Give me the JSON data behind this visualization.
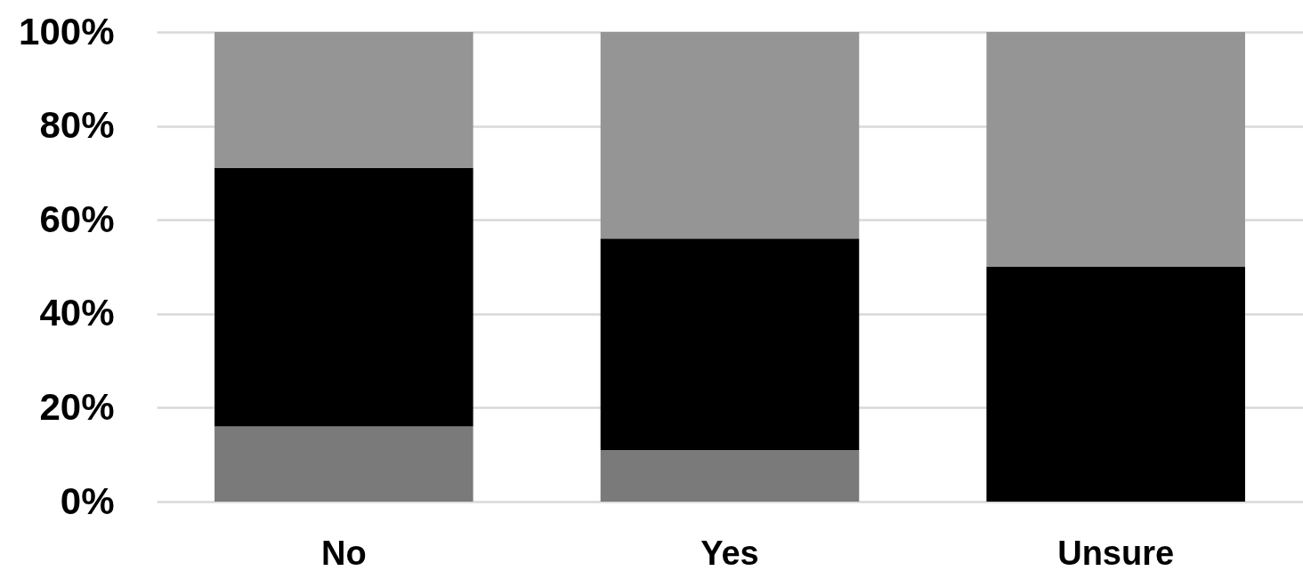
{
  "chart_data": {
    "type": "bar",
    "stacked": true,
    "categories": [
      "No",
      "Yes",
      "Unsure"
    ],
    "series": [
      {
        "color": "#7a7a7a",
        "values": [
          16,
          11,
          0
        ]
      },
      {
        "color": "#000000",
        "values": [
          55,
          45,
          50
        ]
      },
      {
        "color": "#959595",
        "values": [
          29,
          44,
          50
        ]
      }
    ],
    "ylim": [
      0,
      100
    ],
    "yticks": [
      {
        "value": 0,
        "label": "0%"
      },
      {
        "value": 20,
        "label": "20%"
      },
      {
        "value": 40,
        "label": "40%"
      },
      {
        "value": 60,
        "label": "60%"
      },
      {
        "value": 80,
        "label": "80%"
      },
      {
        "value": 100,
        "label": "100%"
      }
    ],
    "grid": "y",
    "legend": false
  }
}
